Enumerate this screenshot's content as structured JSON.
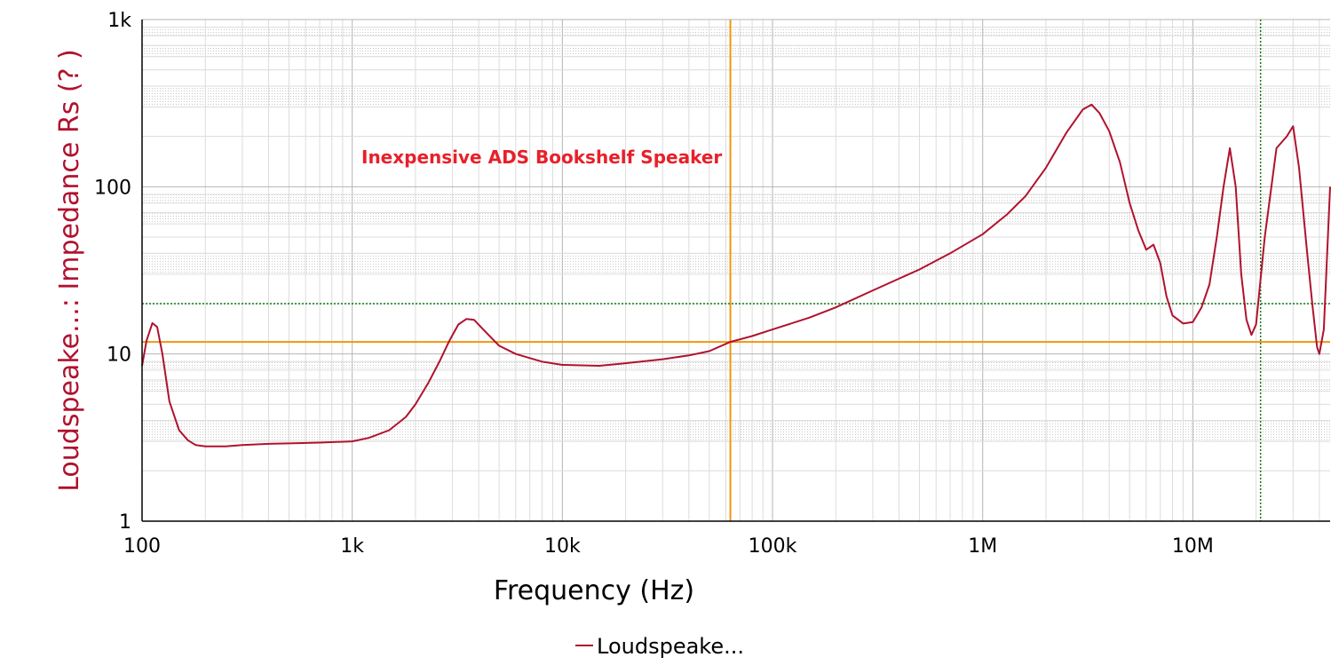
{
  "colors": {
    "series": "#b0122e",
    "annotation": "#e8202a",
    "cursor_primary": "#f0960e",
    "cursor_secondary": "#0f7a0f",
    "grid_major": "#b4b4b4",
    "grid_minor": "#dcdcdc",
    "axis": "#000000"
  },
  "chart_data": {
    "type": "line",
    "xlabel": "Frequency (Hz)",
    "ylabel": "Loudspeake...: Impedance Rs (? )",
    "xscale": "log",
    "yscale": "log",
    "xlim": [
      100,
      45000000
    ],
    "ylim": [
      1,
      1000
    ],
    "grid": true,
    "legend_position": "bottom-center",
    "xticks": [
      {
        "value": 100,
        "label": "100"
      },
      {
        "value": 1000,
        "label": "1k"
      },
      {
        "value": 10000,
        "label": "10k"
      },
      {
        "value": 100000,
        "label": "100k"
      },
      {
        "value": 1000000,
        "label": "1M"
      },
      {
        "value": 10000000,
        "label": "10M"
      }
    ],
    "yticks": [
      {
        "value": 1,
        "label": "1"
      },
      {
        "value": 10,
        "label": "10"
      },
      {
        "value": 100,
        "label": "100"
      },
      {
        "value": 1000,
        "label": "1k"
      }
    ],
    "annotations": [
      {
        "text": "Inexpensive ADS Bookshelf Speaker",
        "x": 5000,
        "y": 150
      }
    ],
    "cursors": {
      "primary": {
        "x": 63000,
        "y": 11.8
      },
      "secondary": {
        "x": 21000000,
        "y": 20
      }
    },
    "series": [
      {
        "name": "Loudspeake...",
        "x": [
          100,
          105,
          112,
          118,
          125,
          135,
          150,
          165,
          180,
          200,
          250,
          300,
          400,
          500,
          700,
          1000,
          1200,
          1500,
          1800,
          2000,
          2300,
          2600,
          2900,
          3200,
          3500,
          3800,
          4200,
          5000,
          6000,
          8000,
          10000,
          15000,
          20000,
          30000,
          40000,
          50000,
          63000,
          80000,
          100000,
          150000,
          200000,
          300000,
          500000,
          700000,
          1000000,
          1300000,
          1600000,
          2000000,
          2500000,
          3000000,
          3300000,
          3600000,
          4000000,
          4500000,
          5000000,
          5500000,
          6000000,
          6500000,
          7000000,
          7500000,
          8000000,
          9000000,
          10000000,
          11000000,
          12000000,
          13000000,
          14000000,
          15000000,
          16000000,
          17000000,
          18000000,
          19000000,
          20000000,
          22000000,
          25000000,
          28000000,
          30000000,
          32000000,
          35000000,
          37000000,
          39000000,
          40000000,
          42000000,
          45000000
        ],
        "values": [
          8.5,
          12,
          15.3,
          14.5,
          10,
          5.2,
          3.5,
          3.05,
          2.85,
          2.8,
          2.8,
          2.85,
          2.9,
          2.92,
          2.95,
          3.0,
          3.15,
          3.5,
          4.2,
          5,
          6.7,
          9,
          12,
          15,
          16.2,
          16,
          14,
          11.2,
          10,
          9,
          8.6,
          8.5,
          8.8,
          9.3,
          9.8,
          10.4,
          11.8,
          12.8,
          14,
          16.5,
          19,
          24,
          32,
          40,
          52,
          68,
          88,
          130,
          210,
          290,
          310,
          275,
          215,
          140,
          80,
          55,
          42,
          45,
          35,
          22,
          17,
          15.2,
          15.5,
          19,
          26,
          50,
          100,
          170,
          100,
          30,
          16,
          13,
          15,
          50,
          170,
          200,
          230,
          130,
          40,
          20,
          11,
          10,
          14,
          100
        ]
      }
    ]
  }
}
